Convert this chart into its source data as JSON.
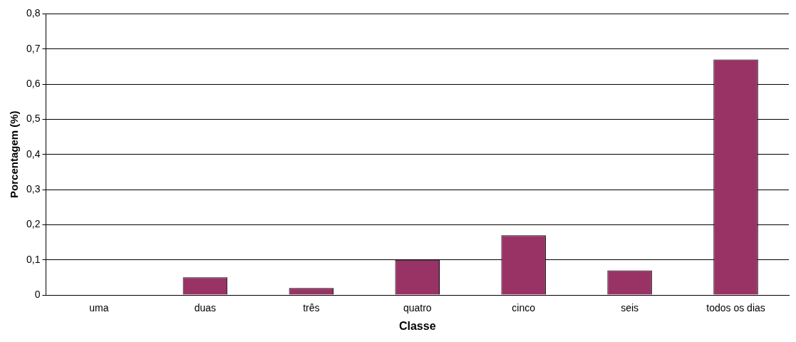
{
  "chart_data": {
    "type": "bar",
    "xlabel": "Classe",
    "ylabel": "Porcentagem (%)",
    "categories": [
      "uma",
      "duas",
      "três",
      "quatro",
      "cinco",
      "seis",
      "todos os dias"
    ],
    "values": [
      0,
      0.05,
      0.02,
      0.1,
      0.17,
      0.07,
      0.67
    ],
    "color": "#993366",
    "ylim": [
      0,
      0.8
    ],
    "yticks": [
      {
        "value": 0,
        "label": "0"
      },
      {
        "value": 0.1,
        "label": "0,1"
      },
      {
        "value": 0.2,
        "label": "0,2"
      },
      {
        "value": 0.3,
        "label": "0,3"
      },
      {
        "value": 0.4,
        "label": "0,4"
      },
      {
        "value": 0.5,
        "label": "0,5"
      },
      {
        "value": 0.6,
        "label": "0,6"
      },
      {
        "value": 0.7,
        "label": "0,7"
      },
      {
        "value": 0.8,
        "label": "0,8"
      }
    ],
    "grid": "y",
    "legend": false
  }
}
